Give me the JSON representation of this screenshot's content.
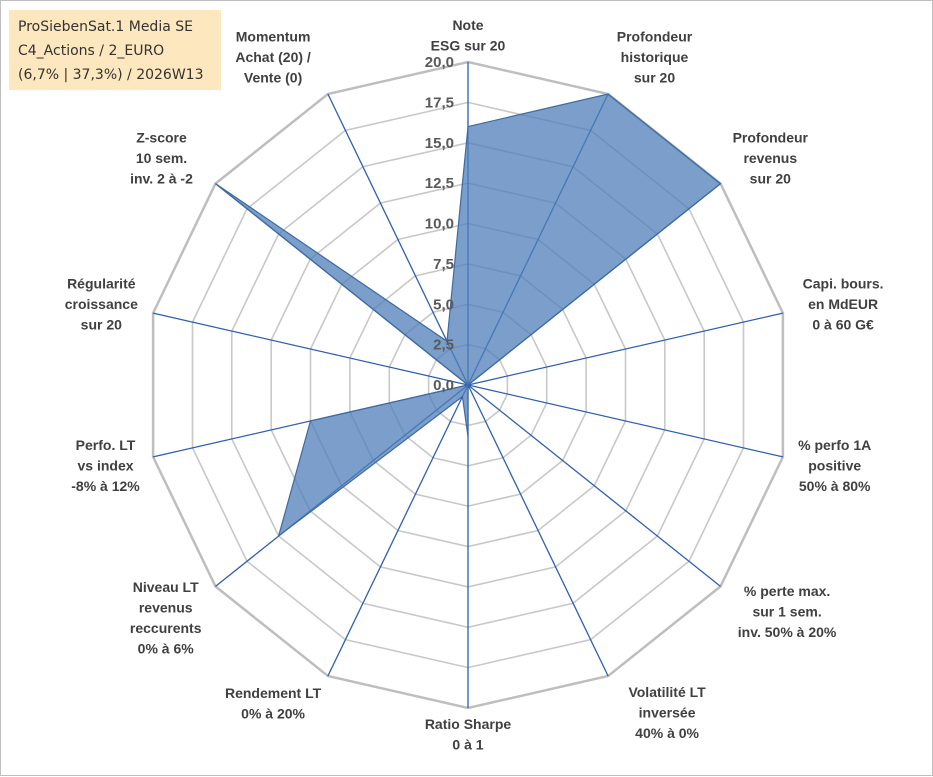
{
  "colors": {
    "area_fill": "#4f7fb8",
    "area_fill_opacity": 0.75,
    "area_stroke": "#3d6aa3",
    "spoke": "#2e5fb0",
    "grid": "#c8c8c8",
    "grid_outer": "#bebebe",
    "title_bg": "#fde7bf"
  },
  "title_box": {
    "line1": "ProSiebenSat.1 Media SE",
    "line2": "C4_Actions / 2_EURO",
    "line3": "(6,7% | 37,3%) / 2026W13"
  },
  "chart_data": {
    "type": "radar",
    "range": [
      0,
      20
    ],
    "step": 2.5,
    "tick_labels": [
      "0,0",
      "2,5",
      "5,0",
      "7,5",
      "10,0",
      "12,5",
      "15,0",
      "17,5",
      "20,0"
    ],
    "axes": [
      {
        "label": [
          "Note",
          "ESG sur 20"
        ],
        "value": 16
      },
      {
        "label": [
          "Profondeur",
          "historique",
          "sur 20"
        ],
        "value": 20
      },
      {
        "label": [
          "Profondeur",
          "revenus",
          "sur 20"
        ],
        "value": 20
      },
      {
        "label": [
          "Capi. bours.",
          "en MdEUR",
          "0 à 60 G€"
        ],
        "value": 0
      },
      {
        "label": [
          "% perfo 1A",
          "positive",
          "50% à 80%"
        ],
        "value": 0
      },
      {
        "label": [
          "% perte max.",
          "sur 1 sem.",
          "inv. 50% à 20%"
        ],
        "value": 0
      },
      {
        "label": [
          "Volatilité LT",
          "inversée",
          "40% à 0%"
        ],
        "value": 0
      },
      {
        "label": [
          "Ratio Sharpe",
          "0 à 1"
        ],
        "value": 3.2
      },
      {
        "label": [
          "Rendement LT",
          "0% à 20%"
        ],
        "value": 0.8
      },
      {
        "label": [
          "Niveau LT",
          "revenus",
          "reccurents",
          "0% à 6%"
        ],
        "value": 15
      },
      {
        "label": [
          "Perfo. LT",
          "vs index",
          "-8% à 12%"
        ],
        "value": 10
      },
      {
        "label": [
          "Régularité",
          "croissance",
          "sur 20"
        ],
        "value": 0
      },
      {
        "label": [
          "Z-score",
          "10 sem.",
          "inv. 2 à -2"
        ],
        "value": 20
      },
      {
        "label": [
          "Momentum",
          "Achat (20) /",
          "Vente (0)"
        ],
        "value": 3
      }
    ]
  }
}
